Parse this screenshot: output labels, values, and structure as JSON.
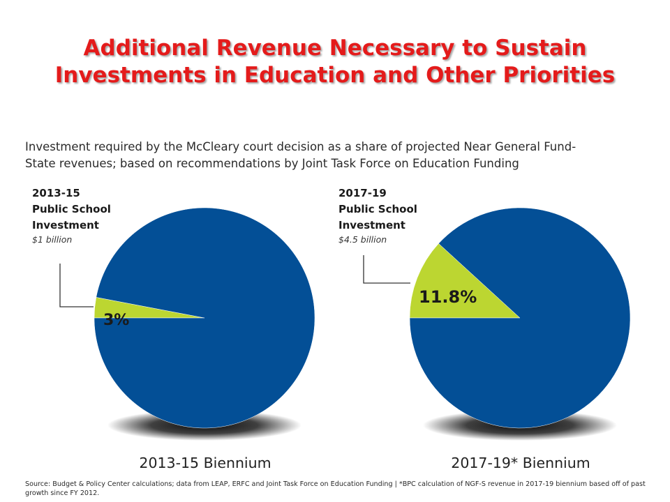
{
  "title_line1": "Additional Revenue Necessary to Sustain",
  "title_line2": "Investments in Education and Other Priorities",
  "subtitle": "Investment required by the McCleary court decision as a share of projected Near General Fund-State  revenues; based on recommendations by Joint Task Force on Education Funding",
  "source": "Source: Budget & Policy Center calculations; data from LEAP,  ERFC and Joint Task Force on Education Funding |  *BPC calculation of NGF-S revenue  in 2017-19 biennium based off of past growth since FY 2012.",
  "colors": {
    "title": "#e41b1b",
    "pie_main": "#034f96",
    "pie_slice": "#bcd631",
    "shadow": "#000000"
  },
  "chart_data": [
    {
      "type": "pie",
      "title": "2013-15 Biennium",
      "callout": {
        "line1": "2013-15",
        "line2": "Public School",
        "line3": "Investment",
        "amount": "$1 billion"
      },
      "slices": [
        {
          "label": "3%",
          "value": 3,
          "color": "#bcd631"
        },
        {
          "label": "",
          "value": 97,
          "color": "#034f96"
        }
      ]
    },
    {
      "type": "pie",
      "title": "2017-19* Biennium",
      "callout": {
        "line1": "2017-19",
        "line2": "Public School",
        "line3": "Investment",
        "amount": "$4.5 billion"
      },
      "slices": [
        {
          "label": "11.8%",
          "value": 11.8,
          "color": "#bcd631"
        },
        {
          "label": "",
          "value": 88.2,
          "color": "#034f96"
        }
      ]
    }
  ]
}
